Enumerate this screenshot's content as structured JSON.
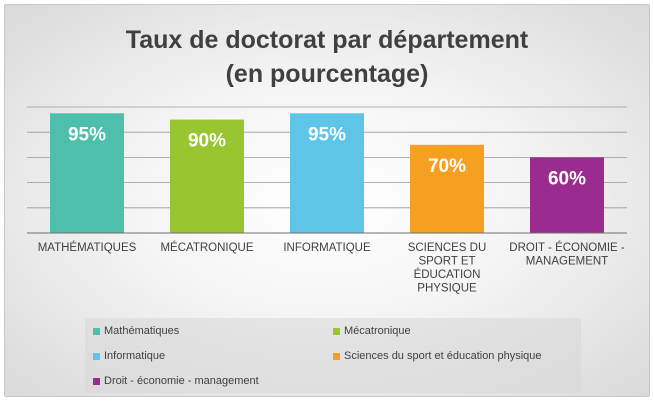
{
  "chart_data": {
    "type": "bar",
    "title": "Taux de doctorat par département",
    "subtitle": "(en pourcentage)",
    "categories": [
      "MATHÉMATIQUES",
      "MÉCATRONIQUE",
      "INFORMATIQUE",
      "SCIENCES DU SPORT ET ÉDUCATION PHYSIQUE",
      "DROIT - ÉCONOMIE - MANAGEMENT"
    ],
    "category_lines": [
      [
        "MATHÉMATIQUES"
      ],
      [
        "MÉCATRONIQUE"
      ],
      [
        "INFORMATIQUE"
      ],
      [
        "SCIENCES DU",
        "SPORT ET",
        "ÉDUCATION",
        "PHYSIQUE"
      ],
      [
        "DROIT - ÉCONOMIE -",
        "MANAGEMENT"
      ]
    ],
    "values": [
      95,
      90,
      95,
      70,
      60
    ],
    "data_labels": [
      "95%",
      "90%",
      "95%",
      "70%",
      "60%"
    ],
    "colors": [
      "#4dbfaa",
      "#99c630",
      "#5ec4e8",
      "#f5a021",
      "#9b2c8f"
    ],
    "ylim": [
      0,
      100
    ],
    "grid": true,
    "legend_position": "bottom",
    "legend": [
      "Mathématiques",
      "Mécatronique",
      "Informatique",
      "Sciences du sport et éducation physique",
      "Droit - économie - management"
    ]
  }
}
